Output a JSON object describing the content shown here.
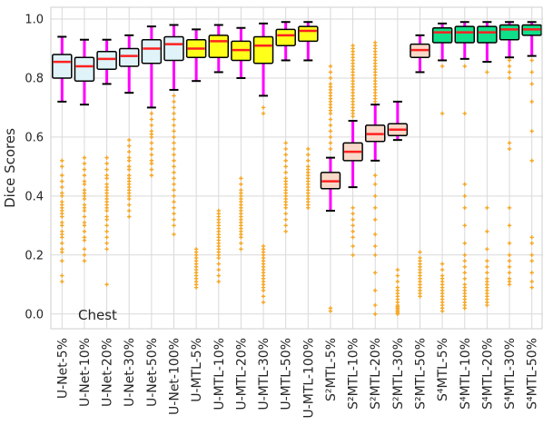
{
  "chart_data": {
    "type": "boxplot",
    "title": "",
    "xlabel": "",
    "ylabel": "Dice Scores",
    "annotation": "Chest",
    "ylim": [
      -0.05,
      1.04
    ],
    "yticks": [
      "0.0",
      "0.2",
      "0.4",
      "0.6",
      "0.8",
      "1.0"
    ],
    "grid": true,
    "colors": {
      "whisker": "#ff00ff",
      "median": "#ff2020",
      "outlier": "#f5a623",
      "box_unet": "#dff3f8",
      "box_umtl": "#ffff1a",
      "box_s2mtl": "#f8d8c8",
      "box_s4mtl": "#10e08a"
    },
    "categories": [
      {
        "label": "U-Net-5%",
        "color": "box_unet",
        "whislo": 0.72,
        "q1": 0.8,
        "med": 0.855,
        "q3": 0.88,
        "whishi": 0.94,
        "outliers": [
          0.52,
          0.5,
          0.47,
          0.45,
          0.43,
          0.41,
          0.4,
          0.38,
          0.37,
          0.36,
          0.35,
          0.34,
          0.33,
          0.31,
          0.3,
          0.28,
          0.27,
          0.26,
          0.24,
          0.22,
          0.21,
          0.18,
          0.13,
          0.11
        ]
      },
      {
        "label": "U-Net-10%",
        "color": "box_unet",
        "whislo": 0.71,
        "q1": 0.79,
        "med": 0.84,
        "q3": 0.87,
        "whishi": 0.93,
        "outliers": [
          0.53,
          0.51,
          0.49,
          0.47,
          0.45,
          0.44,
          0.42,
          0.41,
          0.4,
          0.39,
          0.37,
          0.36,
          0.35,
          0.33,
          0.31,
          0.3,
          0.28,
          0.26,
          0.25,
          0.22,
          0.2,
          0.18
        ]
      },
      {
        "label": "U-Net-20%",
        "color": "box_unet",
        "whislo": 0.78,
        "q1": 0.83,
        "med": 0.865,
        "q3": 0.89,
        "whishi": 0.93,
        "outliers": [
          0.53,
          0.51,
          0.49,
          0.47,
          0.46,
          0.44,
          0.43,
          0.42,
          0.41,
          0.4,
          0.39,
          0.38,
          0.37,
          0.36,
          0.35,
          0.33,
          0.32,
          0.3,
          0.28,
          0.26,
          0.24,
          0.22,
          0.1
        ]
      },
      {
        "label": "U-Net-30%",
        "color": "box_unet",
        "whislo": 0.75,
        "q1": 0.84,
        "med": 0.875,
        "q3": 0.9,
        "whishi": 0.945,
        "outliers": [
          0.59,
          0.57,
          0.55,
          0.53,
          0.52,
          0.5,
          0.49,
          0.47,
          0.46,
          0.45,
          0.44,
          0.43,
          0.42,
          0.41,
          0.4,
          0.39,
          0.37,
          0.35,
          0.33
        ]
      },
      {
        "label": "U-Net-50%",
        "color": "box_unet",
        "whislo": 0.7,
        "q1": 0.85,
        "med": 0.9,
        "q3": 0.93,
        "whishi": 0.975,
        "outliers": [
          0.68,
          0.66,
          0.64,
          0.62,
          0.61,
          0.6,
          0.58,
          0.56,
          0.54,
          0.52,
          0.51,
          0.49,
          0.47
        ]
      },
      {
        "label": "U-Net-100%",
        "color": "box_unet",
        "whislo": 0.76,
        "q1": 0.86,
        "med": 0.915,
        "q3": 0.94,
        "whishi": 0.98,
        "outliers": [
          0.74,
          0.72,
          0.7,
          0.68,
          0.66,
          0.64,
          0.62,
          0.6,
          0.58,
          0.56,
          0.54,
          0.52,
          0.5,
          0.48,
          0.46,
          0.44,
          0.42,
          0.4,
          0.38,
          0.36,
          0.34,
          0.32,
          0.3,
          0.27
        ]
      },
      {
        "label": "U-MTL-5%",
        "color": "box_umtl",
        "whislo": 0.79,
        "q1": 0.87,
        "med": 0.9,
        "q3": 0.93,
        "whishi": 0.965,
        "outliers": [
          0.22,
          0.21,
          0.2,
          0.19,
          0.18,
          0.17,
          0.16,
          0.15,
          0.14,
          0.13,
          0.12,
          0.11,
          0.1,
          0.09
        ]
      },
      {
        "label": "U-MTL-10%",
        "color": "box_umtl",
        "whislo": 0.82,
        "q1": 0.87,
        "med": 0.925,
        "q3": 0.945,
        "whishi": 0.98,
        "outliers": [
          0.35,
          0.34,
          0.33,
          0.32,
          0.31,
          0.3,
          0.29,
          0.28,
          0.27,
          0.26,
          0.25,
          0.24,
          0.23,
          0.22,
          0.21,
          0.2,
          0.19,
          0.17,
          0.15,
          0.13,
          0.11
        ]
      },
      {
        "label": "U-MTL-20%",
        "color": "box_umtl",
        "whislo": 0.8,
        "q1": 0.86,
        "med": 0.895,
        "q3": 0.925,
        "whishi": 0.97,
        "outliers": [
          0.46,
          0.44,
          0.42,
          0.41,
          0.4,
          0.39,
          0.38,
          0.37,
          0.36,
          0.35,
          0.34,
          0.33,
          0.32,
          0.31,
          0.3,
          0.29,
          0.28,
          0.27,
          0.26,
          0.24,
          0.22
        ]
      },
      {
        "label": "U-MTL-30%",
        "color": "box_umtl",
        "whislo": 0.74,
        "q1": 0.85,
        "med": 0.91,
        "q3": 0.94,
        "whishi": 0.985,
        "outliers": [
          0.7,
          0.68,
          0.23,
          0.22,
          0.21,
          0.2,
          0.19,
          0.18,
          0.17,
          0.16,
          0.15,
          0.14,
          0.13,
          0.12,
          0.11,
          0.1,
          0.09,
          0.08,
          0.06,
          0.04
        ]
      },
      {
        "label": "U-MTL-50%",
        "color": "box_umtl",
        "whislo": 0.86,
        "q1": 0.91,
        "med": 0.945,
        "q3": 0.965,
        "whishi": 0.99,
        "outliers": [
          0.58,
          0.56,
          0.54,
          0.52,
          0.5,
          0.48,
          0.46,
          0.45,
          0.44,
          0.43,
          0.42,
          0.41,
          0.4,
          0.39,
          0.38,
          0.37,
          0.36,
          0.34,
          0.32,
          0.3,
          0.28
        ]
      },
      {
        "label": "U-MTL-100%",
        "color": "box_umtl",
        "whislo": 0.86,
        "q1": 0.925,
        "med": 0.96,
        "q3": 0.975,
        "whishi": 0.99,
        "outliers": [
          0.56,
          0.54,
          0.52,
          0.5,
          0.49,
          0.48,
          0.47,
          0.46,
          0.45,
          0.44,
          0.43,
          0.42,
          0.41,
          0.4,
          0.39,
          0.38,
          0.37,
          0.36
        ]
      },
      {
        "label": "S²MTL-5%",
        "color": "box_s2mtl",
        "whislo": 0.35,
        "q1": 0.425,
        "med": 0.45,
        "q3": 0.48,
        "whishi": 0.53,
        "outliers": [
          0.84,
          0.82,
          0.8,
          0.78,
          0.77,
          0.76,
          0.75,
          0.74,
          0.73,
          0.72,
          0.71,
          0.7,
          0.69,
          0.68,
          0.66,
          0.64,
          0.62,
          0.6,
          0.58,
          0.56,
          0.02,
          0.01
        ]
      },
      {
        "label": "S²MTL-10%",
        "color": "box_s2mtl",
        "whislo": 0.43,
        "q1": 0.52,
        "med": 0.55,
        "q3": 0.58,
        "whishi": 0.655,
        "outliers": [
          0.91,
          0.9,
          0.89,
          0.88,
          0.87,
          0.86,
          0.85,
          0.84,
          0.83,
          0.82,
          0.81,
          0.8,
          0.79,
          0.78,
          0.77,
          0.76,
          0.75,
          0.74,
          0.73,
          0.72,
          0.71,
          0.7,
          0.69,
          0.68,
          0.67,
          0.36,
          0.34,
          0.32,
          0.3,
          0.28,
          0.26,
          0.23,
          0.2
        ]
      },
      {
        "label": "S²MTL-20%",
        "color": "box_s2mtl",
        "whislo": 0.52,
        "q1": 0.585,
        "med": 0.61,
        "q3": 0.64,
        "whishi": 0.71,
        "outliers": [
          0.92,
          0.91,
          0.9,
          0.89,
          0.88,
          0.87,
          0.86,
          0.85,
          0.84,
          0.83,
          0.82,
          0.81,
          0.8,
          0.79,
          0.78,
          0.77,
          0.76,
          0.75,
          0.74,
          0.73,
          0.72,
          0.47,
          0.44,
          0.4,
          0.36,
          0.32,
          0.27,
          0.23,
          0.2,
          0.14,
          0.08,
          0.03,
          0.0
        ]
      },
      {
        "label": "S²MTL-30%",
        "color": "box_s2mtl",
        "whislo": 0.59,
        "q1": 0.605,
        "med": 0.625,
        "q3": 0.645,
        "whishi": 0.72,
        "outliers": [
          0.15,
          0.13,
          0.11,
          0.09,
          0.08,
          0.07,
          0.06,
          0.05,
          0.04,
          0.03,
          0.025,
          0.02,
          0.015,
          0.01,
          0.005,
          0.0
        ]
      },
      {
        "label": "S²MTL-50%",
        "color": "box_s2mtl",
        "whislo": 0.82,
        "q1": 0.87,
        "med": 0.895,
        "q3": 0.915,
        "whishi": 0.945,
        "outliers": [
          0.21,
          0.19,
          0.18,
          0.17,
          0.16,
          0.15,
          0.14,
          0.13,
          0.12,
          0.11,
          0.1,
          0.09,
          0.08,
          0.07,
          0.06
        ]
      },
      {
        "label": "S⁴MTL-5%",
        "color": "box_s4mtl",
        "whislo": 0.86,
        "q1": 0.92,
        "med": 0.955,
        "q3": 0.97,
        "whishi": 0.985,
        "outliers": [
          0.84,
          0.68,
          0.17,
          0.15,
          0.13,
          0.12,
          0.11,
          0.1,
          0.09,
          0.08,
          0.07,
          0.06,
          0.05,
          0.04,
          0.03,
          0.02,
          0.01
        ]
      },
      {
        "label": "S⁴MTL-10%",
        "color": "box_s4mtl",
        "whislo": 0.865,
        "q1": 0.92,
        "med": 0.955,
        "q3": 0.975,
        "whishi": 0.99,
        "outliers": [
          0.84,
          0.68,
          0.44,
          0.4,
          0.36,
          0.3,
          0.24,
          0.2,
          0.18,
          0.16,
          0.14,
          0.12,
          0.1,
          0.09,
          0.08,
          0.07,
          0.06,
          0.05,
          0.04,
          0.03,
          0.02
        ]
      },
      {
        "label": "S⁴MTL-20%",
        "color": "box_s4mtl",
        "whislo": 0.855,
        "q1": 0.92,
        "med": 0.955,
        "q3": 0.975,
        "whishi": 0.99,
        "outliers": [
          0.82,
          0.36,
          0.28,
          0.22,
          0.18,
          0.16,
          0.14,
          0.12,
          0.11,
          0.1,
          0.09,
          0.08,
          0.07,
          0.06,
          0.05,
          0.04,
          0.03
        ]
      },
      {
        "label": "S⁴MTL-30%",
        "color": "box_s4mtl",
        "whislo": 0.87,
        "q1": 0.93,
        "med": 0.965,
        "q3": 0.98,
        "whishi": 0.99,
        "outliers": [
          0.86,
          0.84,
          0.82,
          0.8,
          0.58,
          0.56,
          0.36,
          0.3,
          0.24,
          0.2,
          0.18,
          0.16,
          0.14,
          0.12,
          0.11,
          0.1
        ]
      },
      {
        "label": "S⁴MTL-50%",
        "color": "box_s4mtl",
        "whislo": 0.875,
        "q1": 0.945,
        "med": 0.965,
        "q3": 0.98,
        "whishi": 0.99,
        "outliers": [
          0.86,
          0.82,
          0.78,
          0.72,
          0.62,
          0.52,
          0.26,
          0.24,
          0.2,
          0.18,
          0.14,
          0.11,
          0.09
        ]
      }
    ]
  }
}
